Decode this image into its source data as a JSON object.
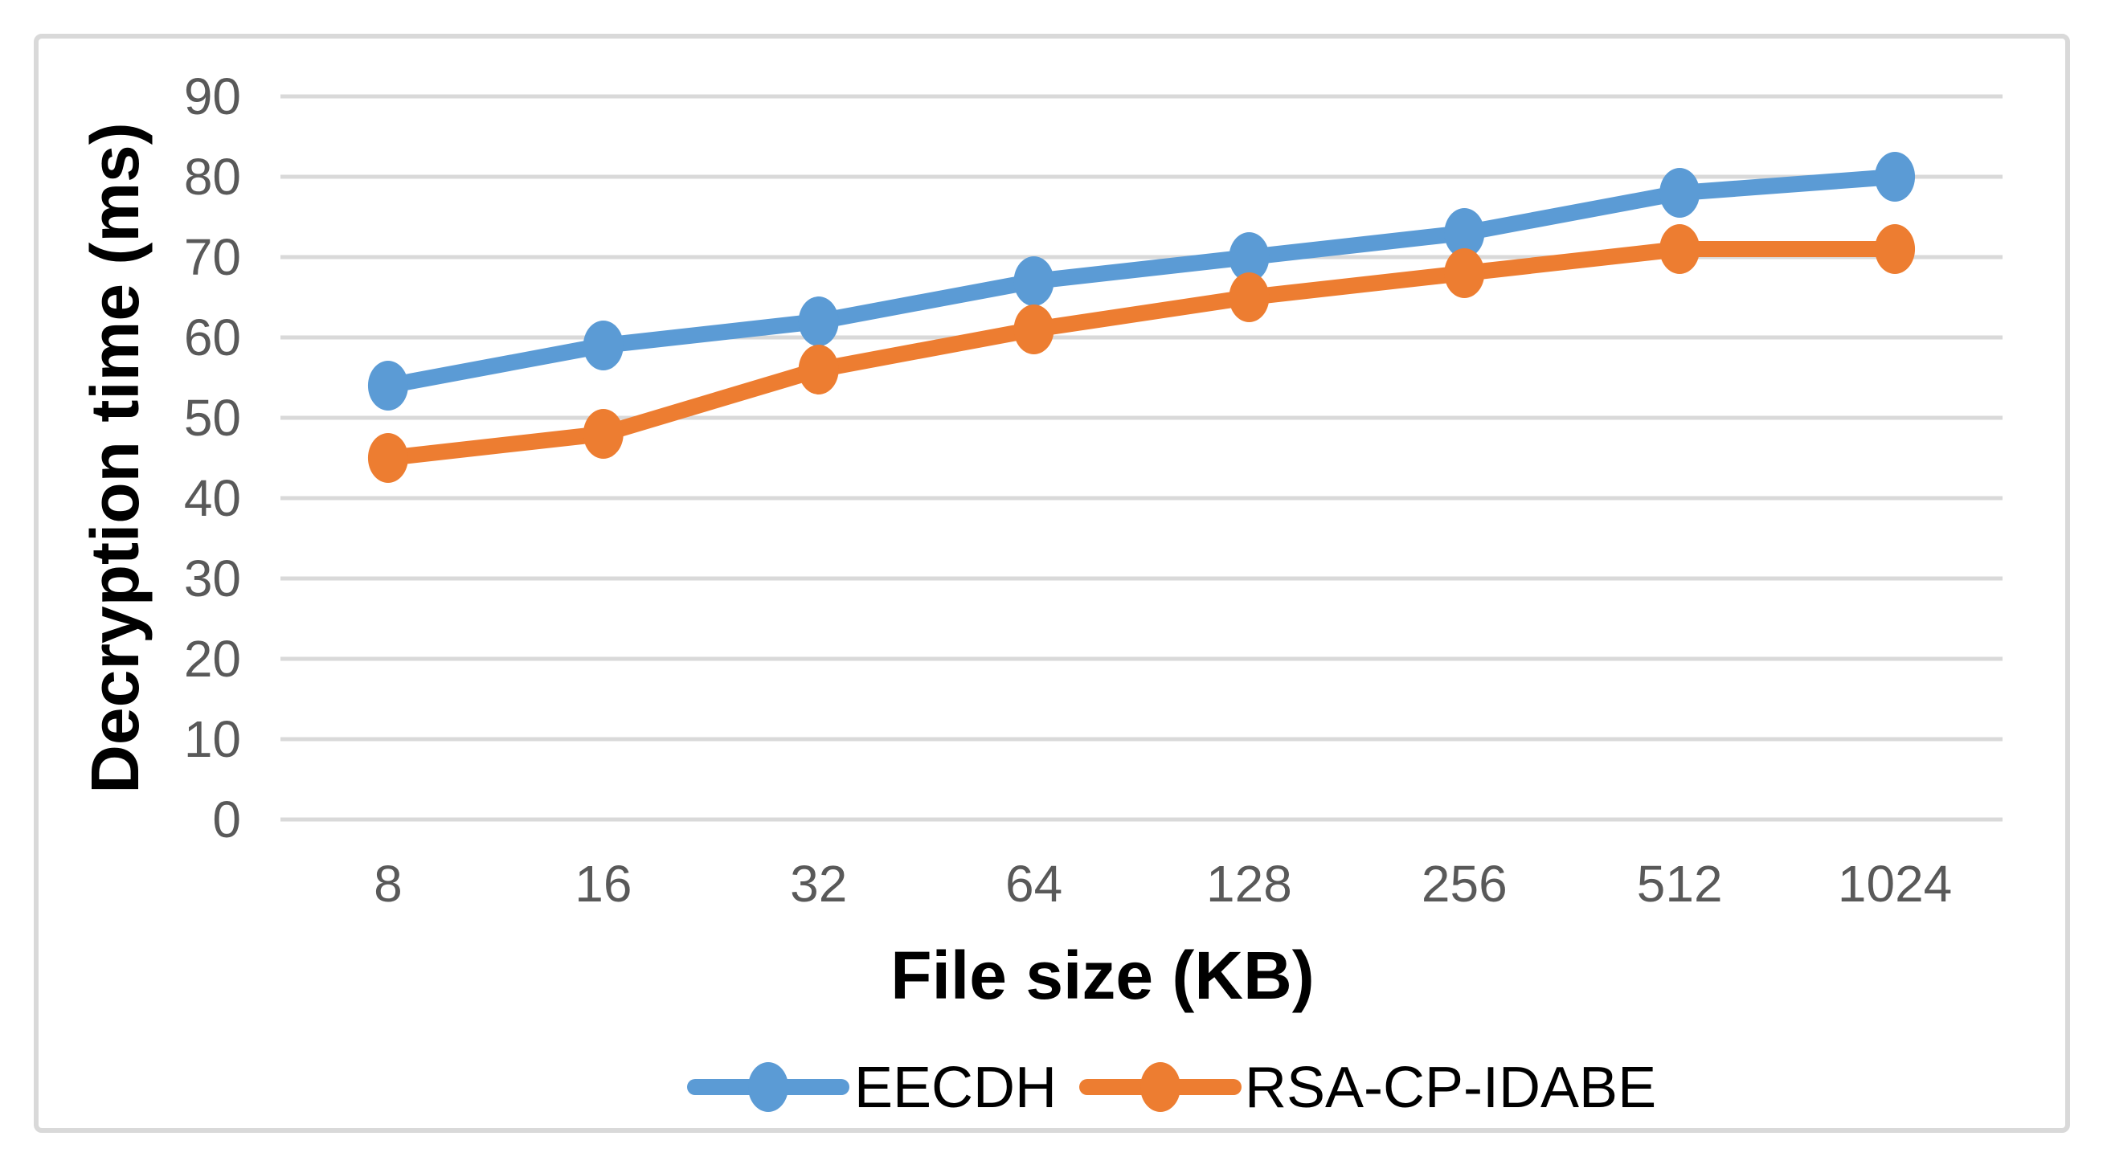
{
  "chart_data": {
    "type": "line",
    "title": "",
    "categories": [
      "8",
      "16",
      "32",
      "64",
      "128",
      "256",
      "512",
      "1024"
    ],
    "series": [
      {
        "name": "EECDH",
        "color": "#5B9BD5",
        "values": [
          54,
          59,
          62,
          67,
          70,
          73,
          78,
          80
        ]
      },
      {
        "name": "RSA-CP-IDABE",
        "color": "#ED7D31",
        "values": [
          45,
          48,
          56,
          61,
          65,
          68,
          71,
          71
        ]
      }
    ],
    "xlabel": "File size (KB)",
    "ylabel": "Decryption time (ms)",
    "ylim": [
      0,
      90
    ],
    "ytick_step": 10,
    "y_tick_labels": [
      "0",
      "10",
      "20",
      "30",
      "40",
      "50",
      "60",
      "70",
      "80",
      "90"
    ],
    "grid": "on",
    "legend_position": "bottom",
    "colors": {
      "gridline": "#D9D9D9",
      "tick_label": "#595959",
      "axis_title": "#000000",
      "legend_text": "#000000",
      "frame_border": "#D9D9D9",
      "background": "#FFFFFF"
    }
  }
}
